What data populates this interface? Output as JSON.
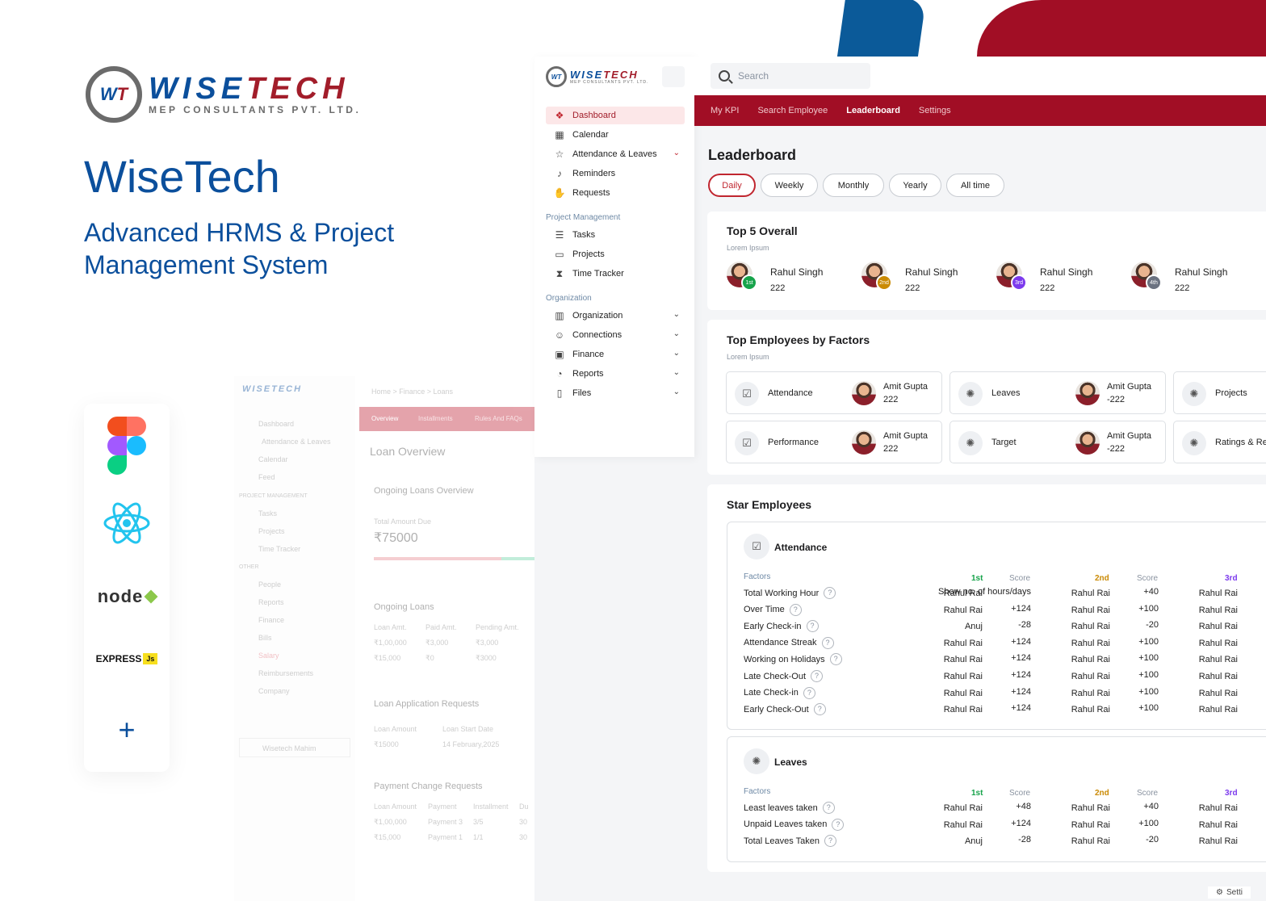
{
  "hero": {
    "logo_main": "WISETECH",
    "logo_sub": "MEP CONSULTANTS PVT. LTD.",
    "title": "WiseTech",
    "subtitle": "Advanced HRMS & Project Management System"
  },
  "tech_stack": {
    "items": [
      "figma-icon",
      "react-icon",
      "nodejs-icon",
      "express-icon",
      "plus-icon"
    ],
    "node_label": "node",
    "express_label": "EXPRESS",
    "express_badge": "Js",
    "plus_symbol": "+"
  },
  "faded_mock": {
    "logo": "WISETECH",
    "breadcrumb": "Home > Finance > Loans",
    "sidebar": [
      "Dashboard",
      "Attendance & Leaves",
      "Calendar",
      "Feed"
    ],
    "section_pm": "PROJECT MANAGEMENT",
    "pm_items": [
      "Tasks",
      "Projects",
      "Time Tracker"
    ],
    "section_other": "OTHER",
    "other_items": [
      "People",
      "Reports",
      "Finance",
      "Bills",
      "Salary",
      "Reimbursements",
      "Company"
    ],
    "user": "Wisetech Mahim",
    "tabs": [
      "Overview",
      "Installments",
      "Rules And FAQs"
    ],
    "page_title": "Loan Overview",
    "ongoing_overview": "Ongoing Loans Overview",
    "total_due_label": "Total Amount Due",
    "total_due": "₹75000",
    "ongoing_loans": "Ongoing Loans",
    "ol_headers": [
      "Loan Amt.",
      "Paid Amt.",
      "Pending Amt."
    ],
    "ol_rows": [
      [
        "₹1,00,000",
        "₹3,000",
        "₹3,000"
      ],
      [
        "₹15,000",
        "₹0",
        "₹3000"
      ]
    ],
    "loan_app": "Loan Application Requests",
    "la_headers": [
      "Loan Amount",
      "Loan Start Date"
    ],
    "la_row": [
      "₹15000",
      "14 February,2025"
    ],
    "payment_change": "Payment Change Requests",
    "pc_headers": [
      "Loan Amount",
      "Payment",
      "Installment",
      "Du"
    ],
    "pc_rows": [
      [
        "₹1,00,000",
        "Payment 3",
        "3/5",
        "30"
      ],
      [
        "₹15,000",
        "Payment 1",
        "1/1",
        "30"
      ]
    ]
  },
  "sidebar": {
    "logo_main": "WISETECH",
    "logo_sub": "MEP CONSULTANTS PVT. LTD.",
    "items": [
      {
        "label": "Dashboard",
        "icon": "dashboard-icon",
        "glyph": "❖"
      },
      {
        "label": "Calendar",
        "icon": "calendar-icon",
        "glyph": "▦"
      },
      {
        "label": "Attendance & Leaves",
        "icon": "attendance-icon",
        "glyph": "☆"
      },
      {
        "label": "Reminders",
        "icon": "bell-icon",
        "glyph": "♪"
      },
      {
        "label": "Requests",
        "icon": "hand-icon",
        "glyph": "✋"
      }
    ],
    "section_pm": "Project Management",
    "pm_items": [
      {
        "label": "Tasks",
        "icon": "tasks-icon",
        "glyph": "☰"
      },
      {
        "label": "Projects",
        "icon": "briefcase-icon",
        "glyph": "▭"
      },
      {
        "label": "Time Tracker",
        "icon": "hourglass-icon",
        "glyph": "⧗"
      }
    ],
    "section_org": "Organization",
    "org_items": [
      {
        "label": "Organization",
        "icon": "building-icon",
        "glyph": "▥"
      },
      {
        "label": "Connections",
        "icon": "people-icon",
        "glyph": "☺"
      },
      {
        "label": "Finance",
        "icon": "money-icon",
        "glyph": "▣"
      },
      {
        "label": "Reports",
        "icon": "chart-pie-icon",
        "glyph": "◔"
      },
      {
        "label": "Files",
        "icon": "file-icon",
        "glyph": "▯"
      }
    ]
  },
  "topbar": {
    "search_placeholder": "Search",
    "nav": [
      "My KPI",
      "Search Employee",
      "Leaderboard",
      "Settings"
    ]
  },
  "leaderboard": {
    "title": "Leaderboard",
    "periods": [
      "Daily",
      "Weekly",
      "Monthly",
      "Yearly",
      "All time"
    ],
    "selected_period": "Daily",
    "top5": {
      "title": "Top 5 Overall",
      "subtitle": "Lorem Ipsum",
      "entries": [
        {
          "name": "Rahul Singh",
          "score": "222",
          "rank": "1st",
          "color": "#16a34a"
        },
        {
          "name": "Rahul Singh",
          "score": "222",
          "rank": "2nd",
          "color": "#ca8a04"
        },
        {
          "name": "Rahul Singh",
          "score": "222",
          "rank": "3rd",
          "color": "#7c3aed"
        },
        {
          "name": "Rahul Singh",
          "score": "222",
          "rank": "4th",
          "color": "#6b7280"
        }
      ]
    },
    "factors": {
      "title": "Top Employees by Factors",
      "subtitle": "Lorem Ipsum",
      "cards": [
        {
          "label": "Attendance",
          "name": "Amit Gupta",
          "value": "222",
          "icon": "calendar-check-icon"
        },
        {
          "label": "Leaves",
          "name": "Amit Gupta",
          "value": "-222",
          "icon": "bug-icon"
        },
        {
          "label": "Projects",
          "name": "",
          "value": "",
          "icon": "bug-icon"
        },
        {
          "label": "Performance",
          "name": "Amit Gupta",
          "value": "222",
          "icon": "calendar-check-icon"
        },
        {
          "label": "Target",
          "name": "Amit Gupta",
          "value": "-222",
          "icon": "bug-icon"
        },
        {
          "label": "Ratings & Re",
          "name": "",
          "value": "",
          "icon": "bug-icon"
        }
      ]
    },
    "stars": {
      "title": "Star Employees",
      "attendance": {
        "title": "Attendance",
        "headers": {
          "factors": "Factors",
          "first": "1st",
          "score": "Score",
          "second": "2nd",
          "third": "3rd"
        },
        "rows": [
          {
            "factor": "Total Working Hour",
            "n1": "Rahul Rai",
            "s1": "Show no. of hours/days",
            "n2": "Rahul Rai",
            "s2": "+40",
            "n3": "Rahul Rai"
          },
          {
            "factor": "Over Time",
            "n1": "Rahul Rai",
            "s1": "+124",
            "n2": "Rahul Rai",
            "s2": "+100",
            "n3": "Rahul Rai"
          },
          {
            "factor": "Early Check-in",
            "n1": "Anuj",
            "s1": "-28",
            "n2": "Rahul Rai",
            "s2": "-20",
            "n3": "Rahul Rai"
          },
          {
            "factor": "Attendance Streak",
            "n1": "Rahul Rai",
            "s1": "+124",
            "n2": "Rahul Rai",
            "s2": "+100",
            "n3": "Rahul Rai"
          },
          {
            "factor": "Working on Holidays",
            "n1": "Rahul Rai",
            "s1": "+124",
            "n2": "Rahul Rai",
            "s2": "+100",
            "n3": "Rahul Rai"
          },
          {
            "factor": "Late Check-Out",
            "n1": "Rahul Rai",
            "s1": "+124",
            "n2": "Rahul Rai",
            "s2": "+100",
            "n3": "Rahul Rai"
          },
          {
            "factor": "Late Check-in",
            "n1": "Rahul Rai",
            "s1": "+124",
            "n2": "Rahul Rai",
            "s2": "+100",
            "n3": "Rahul Rai"
          },
          {
            "factor": "Early Check-Out",
            "n1": "Rahul Rai",
            "s1": "+124",
            "n2": "Rahul Rai",
            "s2": "+100",
            "n3": "Rahul Rai"
          }
        ]
      },
      "leaves": {
        "title": "Leaves",
        "headers": {
          "factors": "Factors",
          "first": "1st",
          "score": "Score",
          "second": "2nd",
          "third": "3rd"
        },
        "rows": [
          {
            "factor": "Least leaves taken",
            "n1": "Rahul Rai",
            "s1": "+48",
            "n2": "Rahul Rai",
            "s2": "+40",
            "n3": "Rahul Rai"
          },
          {
            "factor": "Unpaid Leaves taken",
            "n1": "Rahul Rai",
            "s1": "+124",
            "n2": "Rahul Rai",
            "s2": "+100",
            "n3": "Rahul Rai"
          },
          {
            "factor": "Total Leaves Taken",
            "n1": "Anuj",
            "s1": "-28",
            "n2": "Rahul Rai",
            "s2": "-20",
            "n3": "Rahul Rai"
          }
        ]
      }
    },
    "settings_tab": "Setti"
  },
  "colors": {
    "brand_blue": "#0b4f9c",
    "brand_red": "#a10e25",
    "first": "#16a34a",
    "second": "#ca8a04",
    "third": "#7c3aed"
  }
}
